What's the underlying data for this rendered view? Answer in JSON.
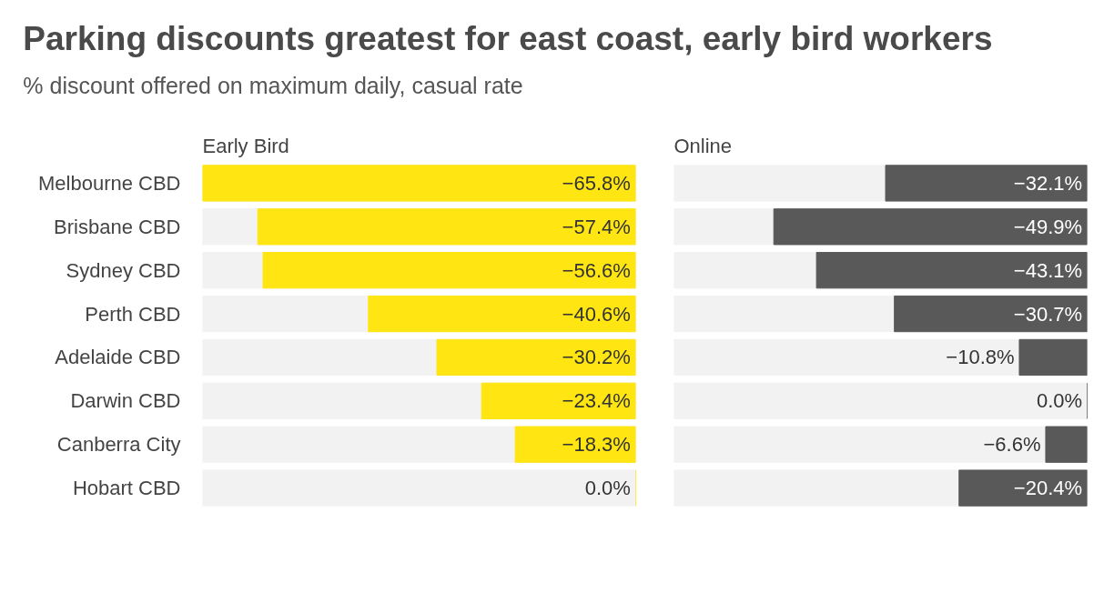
{
  "chart_data": [
    {
      "type": "other",
      "title": "Parking discounts greatest for east coast, early bird workers",
      "subtitle": "% discount offered on maximum daily, casual rate"
    },
    {
      "type": "bar",
      "orientation": "horizontal",
      "title": "Early Bird",
      "categories": [
        "Melbourne CBD",
        "Brisbane CBD",
        "Sydney CBD",
        "Perth CBD",
        "Adelaide CBD",
        "Darwin CBD",
        "Canberra City",
        "Hobart CBD"
      ],
      "values": [
        -65.8,
        -57.4,
        -56.6,
        -40.6,
        -30.2,
        -23.4,
        -18.3,
        0.0
      ],
      "value_labels": [
        "−65.8%",
        "−57.4%",
        "−56.6%",
        "−40.6%",
        "−30.2%",
        "−23.4%",
        "−18.3%",
        "0.0%"
      ],
      "color": "#ffe512",
      "tick_labels": "y",
      "grid": false
    },
    {
      "type": "bar",
      "orientation": "horizontal",
      "title": "Online",
      "categories": [
        null,
        null,
        null,
        null,
        null,
        null,
        null,
        null
      ],
      "values": [
        -32.1,
        -49.9,
        -43.1,
        -30.7,
        -10.8,
        0.0,
        -6.6,
        -20.4
      ],
      "value_labels": [
        "−32.1%",
        "−49.9%",
        "−43.1%",
        "−30.7%",
        "−10.8%",
        "0.0%",
        "−6.6%",
        "−20.4%"
      ],
      "color": "#595959",
      "tick_labels": false,
      "grid": false
    }
  ]
}
